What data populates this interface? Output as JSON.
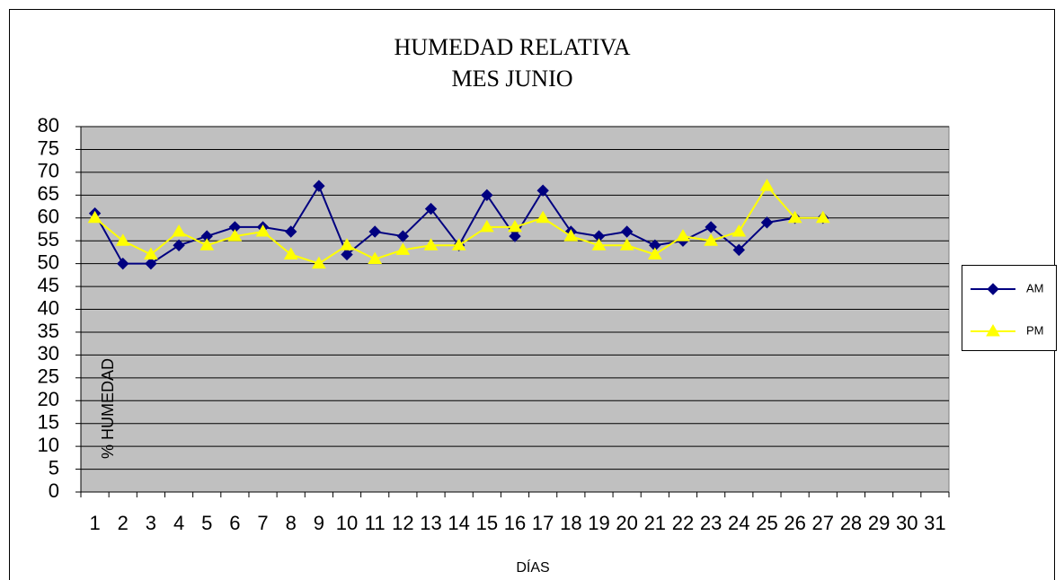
{
  "chart_data": {
    "type": "line",
    "title": "HUMEDAD RELATIVA",
    "subtitle": "MES JUNIO",
    "x_label": "DÍAS",
    "y_label": "% HUMEDAD",
    "categories": [
      "1",
      "2",
      "3",
      "4",
      "5",
      "6",
      "7",
      "8",
      "9",
      "10",
      "11",
      "12",
      "13",
      "14",
      "15",
      "16",
      "17",
      "18",
      "19",
      "20",
      "21",
      "22",
      "23",
      "24",
      "25",
      "26",
      "27",
      "28",
      "29",
      "30",
      "31"
    ],
    "series": [
      {
        "name": "AM",
        "color": "#000080",
        "marker": "diamond",
        "values": [
          61,
          50,
          50,
          54,
          56,
          58,
          58,
          57,
          67,
          52,
          57,
          56,
          62,
          54,
          65,
          56,
          66,
          57,
          56,
          57,
          54,
          55,
          58,
          53,
          59,
          60,
          60,
          null,
          null,
          null,
          null
        ]
      },
      {
        "name": "PM",
        "color": "#ffff00",
        "marker": "triangle",
        "values": [
          60,
          55,
          52,
          57,
          54,
          56,
          57,
          52,
          50,
          54,
          51,
          53,
          54,
          54,
          58,
          58,
          60,
          56,
          54,
          54,
          52,
          56,
          55,
          57,
          67,
          60,
          60,
          null,
          null,
          null,
          null
        ]
      }
    ],
    "ylim": [
      0,
      80
    ],
    "yticks": [
      0,
      5,
      10,
      15,
      20,
      25,
      30,
      35,
      40,
      45,
      50,
      55,
      60,
      65,
      70,
      75,
      80
    ],
    "grid": true,
    "plot_background": "#c0c0c0",
    "legend": "right"
  }
}
